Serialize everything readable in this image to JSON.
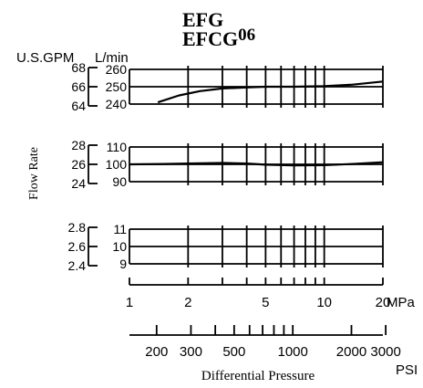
{
  "chart_data": {
    "type": "line",
    "title_line1": "EFG",
    "title_line2_main": "EFCG",
    "title_line2_sup": "06",
    "ylabel": "Flow Rate",
    "units_gpm": "U.S.GPM",
    "units_lmin": "L/min",
    "xlabel": "Differential Pressure",
    "x_scale": "log",
    "mpa_unit": "MPa",
    "psi_unit": "PSI",
    "grid": true,
    "mpa_ticks": [
      {
        "value": 1,
        "label": "1"
      },
      {
        "value": 2,
        "label": "2"
      },
      {
        "value": 5,
        "label": "5"
      },
      {
        "value": 10,
        "label": "10"
      },
      {
        "value": 20,
        "label": "20"
      }
    ],
    "mpa_minor_ticks": [
      3,
      4,
      6,
      7,
      8,
      9
    ],
    "psi_tick_labels": [
      {
        "value": 200,
        "label": "200"
      },
      {
        "value": 300,
        "label": "300"
      },
      {
        "value": 500,
        "label": "500"
      },
      {
        "value": 1000,
        "label": "1000"
      },
      {
        "value": 2000,
        "label": "2000"
      },
      {
        "value": 3000,
        "label": "3000"
      }
    ],
    "psi_ticks": [
      200,
      300,
      400,
      500,
      600,
      700,
      800,
      900,
      1000,
      2000,
      3000
    ],
    "xlim_mpa": [
      1,
      20
    ],
    "panels": [
      {
        "ylim_lmin": [
          240,
          260
        ],
        "lmin_ticks": [
          {
            "value": 260,
            "label": "260"
          },
          {
            "value": 250,
            "label": "250"
          },
          {
            "value": 240,
            "label": "240"
          }
        ],
        "gpm_ticks": [
          {
            "value": 68,
            "label": "68"
          },
          {
            "value": 66,
            "label": "66"
          },
          {
            "value": 64,
            "label": "64"
          }
        ],
        "x": [
          1.4,
          1.8,
          2.3,
          3.0,
          4.0,
          5.0,
          7.0,
          10.0,
          14.0,
          20.0
        ],
        "values": [
          241.0,
          245.0,
          247.5,
          249.0,
          249.6,
          250.0,
          250.0,
          250.3,
          251.2,
          253.0
        ]
      },
      {
        "ylim_lmin": [
          90,
          110
        ],
        "lmin_ticks": [
          {
            "value": 110,
            "label": "110"
          },
          {
            "value": 100,
            "label": "100"
          },
          {
            "value": 90,
            "label": "90"
          }
        ],
        "gpm_ticks": [
          {
            "value": 28,
            "label": "28"
          },
          {
            "value": 26,
            "label": "26"
          },
          {
            "value": 24,
            "label": "24"
          }
        ],
        "x": [
          1.0,
          1.5,
          2.0,
          3.0,
          4.0,
          5.0,
          7.0,
          10.0,
          14.0,
          20.0
        ],
        "values": [
          100.0,
          100.2,
          100.5,
          100.8,
          100.5,
          99.8,
          99.4,
          99.5,
          100.2,
          101.2
        ]
      },
      {
        "ylim_lmin": [
          9,
          11
        ],
        "lmin_ticks": [
          {
            "value": 11,
            "label": "11"
          },
          {
            "value": 10,
            "label": "10"
          },
          {
            "value": 9,
            "label": "9"
          }
        ],
        "gpm_ticks": [
          {
            "value": 2.8,
            "label": "2.8"
          },
          {
            "value": 2.6,
            "label": "2.6"
          },
          {
            "value": 2.4,
            "label": "2.4"
          }
        ],
        "x": [],
        "values": []
      }
    ]
  }
}
